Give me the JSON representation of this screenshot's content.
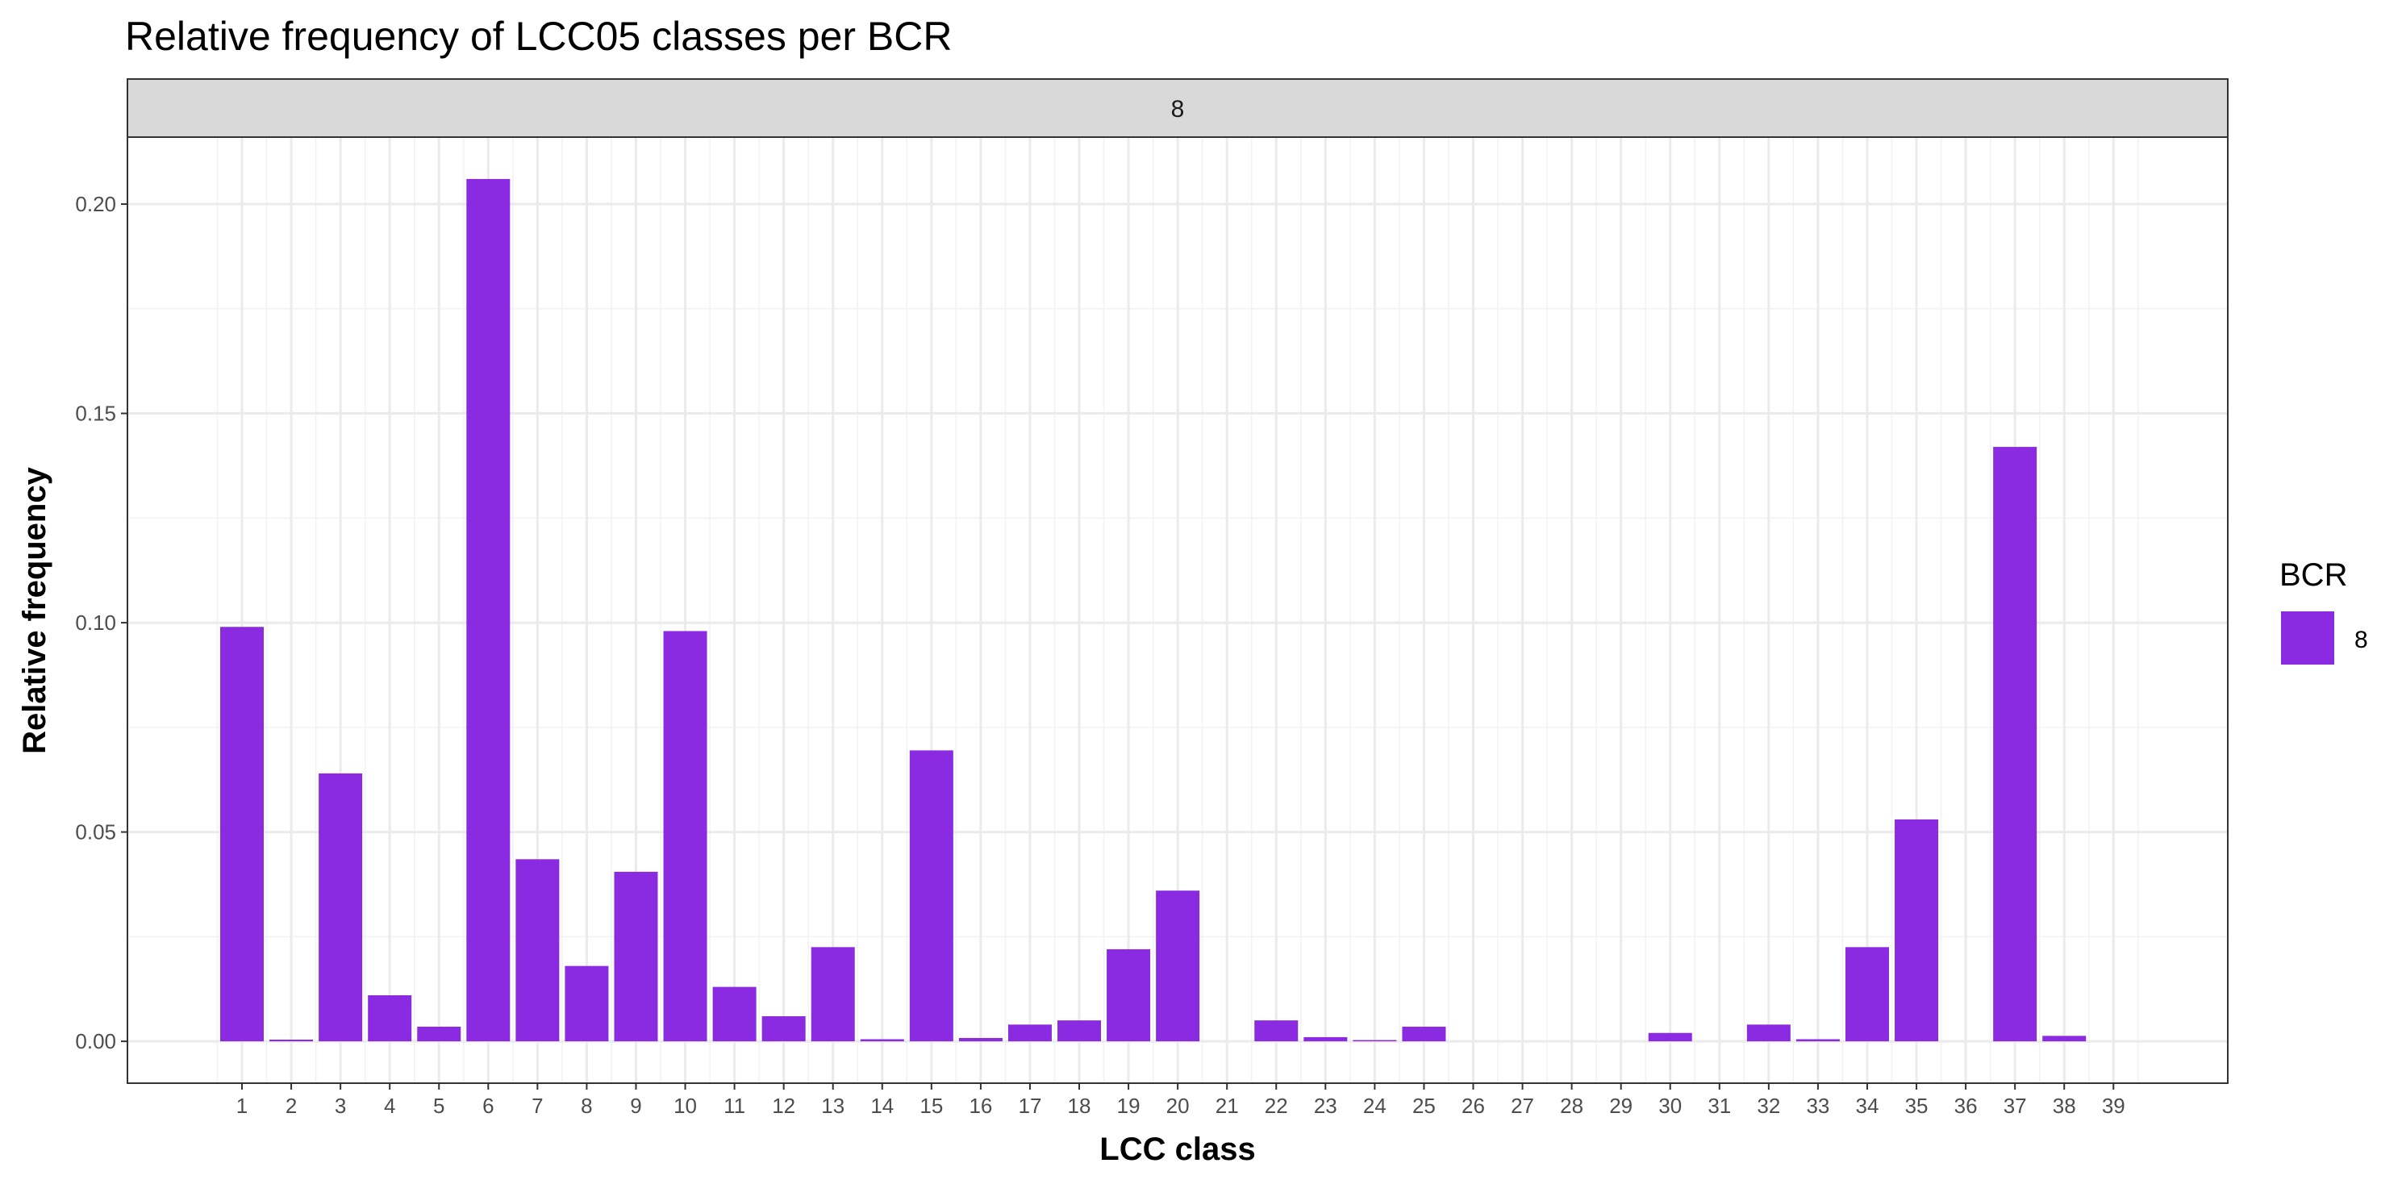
{
  "chart_data": {
    "type": "bar",
    "title": "Relative frequency of LCC05 classes per BCR",
    "facet_label": "8",
    "xlabel": "LCC class",
    "ylabel": "Relative frequency",
    "categories": [
      "1",
      "2",
      "3",
      "4",
      "5",
      "6",
      "7",
      "8",
      "9",
      "10",
      "11",
      "12",
      "13",
      "14",
      "15",
      "16",
      "17",
      "18",
      "19",
      "20",
      "21",
      "22",
      "23",
      "24",
      "25",
      "26",
      "27",
      "28",
      "29",
      "30",
      "31",
      "32",
      "33",
      "34",
      "35",
      "36",
      "37",
      "38",
      "39"
    ],
    "series": [
      {
        "name": "8",
        "color": "#8a2be2",
        "values": [
          0.099,
          0.0004,
          0.064,
          0.011,
          0.0035,
          0.206,
          0.0435,
          0.018,
          0.0405,
          0.098,
          0.013,
          0.006,
          0.0225,
          0.0005,
          0.0695,
          0.0008,
          0.004,
          0.005,
          0.022,
          0.036,
          0,
          0.005,
          0.001,
          0.0003,
          0.0035,
          0,
          0,
          0,
          0,
          0.002,
          0,
          0.004,
          0.0005,
          0.0225,
          0.053,
          0,
          0.142,
          0.0013,
          0
        ]
      }
    ],
    "ylim": [
      -0.01,
      0.216
    ],
    "yticks": [
      "0.00",
      "0.05",
      "0.10",
      "0.15",
      "0.20"
    ],
    "ytick_values": [
      0,
      0.05,
      0.1,
      0.15,
      0.2
    ],
    "grid": true,
    "legend": {
      "title": "BCR",
      "entries": [
        "8"
      ],
      "placement": "right"
    }
  }
}
